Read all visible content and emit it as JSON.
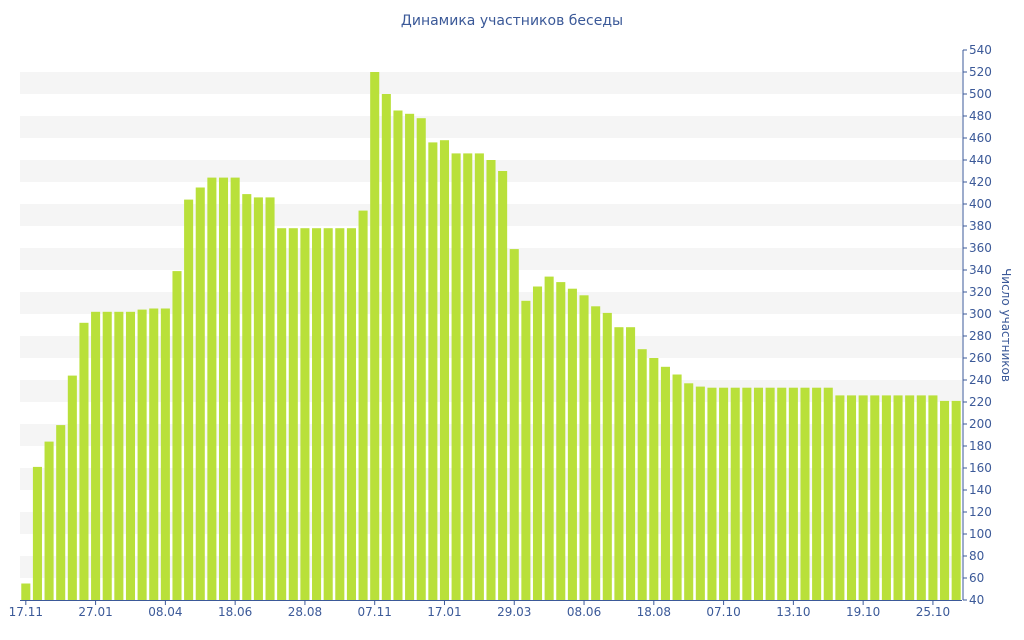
{
  "chart_data": {
    "type": "bar",
    "title": "Динамика участников беседы",
    "ylabel": "Число участников",
    "xlabel": "",
    "ylim": [
      40,
      540
    ],
    "y_tick_step": 20,
    "y_axis_side": "right",
    "grid": "horizontal bands",
    "colors": {
      "bar": "#b9e03a",
      "text": "#3b5998",
      "band": "#f5f5f5",
      "axis": "#3b5998"
    },
    "x_tick_labels": [
      {
        "index": 0,
        "label": "17.11"
      },
      {
        "index": 6,
        "label": "27.01"
      },
      {
        "index": 12,
        "label": "08.04"
      },
      {
        "index": 18,
        "label": "18.06"
      },
      {
        "index": 24,
        "label": "28.08"
      },
      {
        "index": 30,
        "label": "07.11"
      },
      {
        "index": 36,
        "label": "17.01"
      },
      {
        "index": 42,
        "label": "29.03"
      },
      {
        "index": 48,
        "label": "08.06"
      },
      {
        "index": 54,
        "label": "18.08"
      },
      {
        "index": 60,
        "label": "07.10"
      },
      {
        "index": 66,
        "label": "13.10"
      },
      {
        "index": 72,
        "label": "19.10"
      },
      {
        "index": 78,
        "label": "25.10"
      }
    ],
    "values": [
      55,
      161,
      184,
      199,
      244,
      292,
      302,
      302,
      302,
      302,
      304,
      305,
      305,
      339,
      404,
      415,
      424,
      424,
      424,
      409,
      406,
      406,
      378,
      378,
      378,
      378,
      378,
      378,
      378,
      394,
      520,
      500,
      485,
      482,
      478,
      456,
      458,
      446,
      446,
      446,
      440,
      430,
      359,
      312,
      325,
      334,
      329,
      323,
      317,
      307,
      301,
      288,
      288,
      268,
      260,
      252,
      245,
      237,
      234,
      233,
      233,
      233,
      233,
      233,
      233,
      233,
      233,
      233,
      233,
      233,
      226,
      226,
      226,
      226,
      226,
      226,
      226,
      226,
      226,
      221,
      221
    ]
  }
}
